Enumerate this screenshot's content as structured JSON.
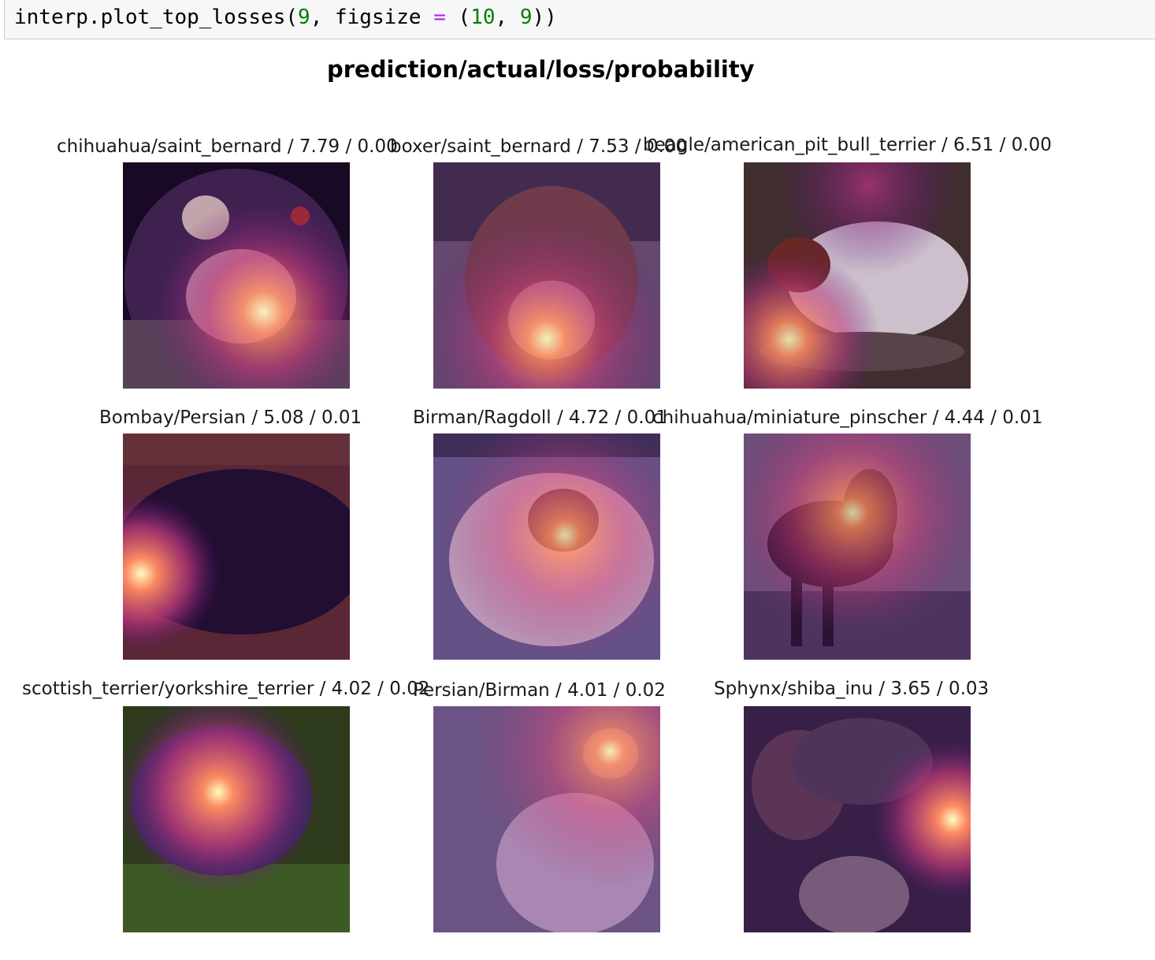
{
  "code_cell": {
    "tokens": [
      {
        "text": "interp.plot_top_losses(",
        "color": "#000000"
      },
      {
        "text": "9",
        "color": "#008000"
      },
      {
        "text": ", figsize ",
        "color": "#000000"
      },
      {
        "text": "=",
        "color": "#aa22ff"
      },
      {
        "text": " (",
        "color": "#000000"
      },
      {
        "text": "10",
        "color": "#008000"
      },
      {
        "text": ", ",
        "color": "#000000"
      },
      {
        "text": "9",
        "color": "#008000"
      },
      {
        "text": "))",
        "color": "#000000"
      }
    ]
  },
  "figure": {
    "title": "prediction/actual/loss/probability",
    "panels": [
      {
        "title": "chihuahua/saint_bernard / 7.79 / 0.00",
        "subject": "chihuahua-photo-icon"
      },
      {
        "title": "boxer/saint_bernard / 7.53 / 0.00",
        "subject": "boxer-dog-photo-icon"
      },
      {
        "title": "beagle/american_pit_bull_terrier / 6.51 / 0.00",
        "subject": "pit-bull-photo-icon"
      },
      {
        "title": "Bombay/Persian / 5.08 / 0.01",
        "subject": "black-cat-photo-icon"
      },
      {
        "title": "Birman/Ragdoll / 4.72 / 0.01",
        "subject": "ragdoll-cat-photo-icon"
      },
      {
        "title": "chihuahua/miniature_pinscher / 4.44 / 0.01",
        "subject": "pinscher-photo-icon"
      },
      {
        "title": "scottish_terrier/yorkshire_terrier / 4.02 / 0.02",
        "subject": "yorkshire-terrier-photo-icon"
      },
      {
        "title": "Persian/Birman / 4.01 / 0.02",
        "subject": "birman-cat-photo-icon"
      },
      {
        "title": "Sphynx/shiba_inu / 3.65 / 0.03",
        "subject": "shiba-inu-photo-icon"
      }
    ],
    "heatmap_colormap": "magma",
    "colors": {
      "heat_core": "#fcfdbf",
      "heat_mid": "#fc8961",
      "heat_outer": "#b73779",
      "heat_edge": "#51127c"
    }
  }
}
